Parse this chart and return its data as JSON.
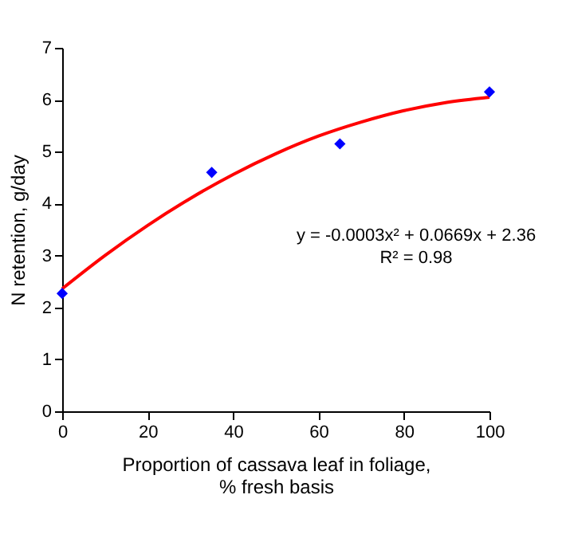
{
  "chart_data": {
    "type": "scatter",
    "xlabel": "Proportion of cassava leaf in foliage,\n% fresh basis",
    "ylabel": "N retention, g/day",
    "x": [
      0,
      35,
      65,
      100
    ],
    "series": [
      {
        "color": "#0000ff",
        "marker": "diamond",
        "values": [
          2.27,
          4.6,
          5.15,
          6.15
        ]
      },
      {
        "type": "line",
        "color": "#ff0000",
        "marker": "none",
        "x": [
          0,
          10,
          20,
          30,
          40,
          50,
          60,
          70,
          80,
          90,
          100
        ],
        "values": [
          2.36,
          3.0,
          3.58,
          4.1,
          4.56,
          4.96,
          5.3,
          5.57,
          5.79,
          5.95,
          6.05
        ]
      }
    ],
    "xlim": [
      0,
      100
    ],
    "xticks": [
      0,
      20,
      40,
      60,
      80,
      100
    ],
    "ylim": [
      0,
      7
    ],
    "yticks": [
      0,
      1,
      2,
      3,
      4,
      5,
      6,
      7
    ],
    "annotations": [
      "y = -0.0003x² + 0.0669x + 2.36",
      "R² = 0.98"
    ],
    "grid": false
  }
}
